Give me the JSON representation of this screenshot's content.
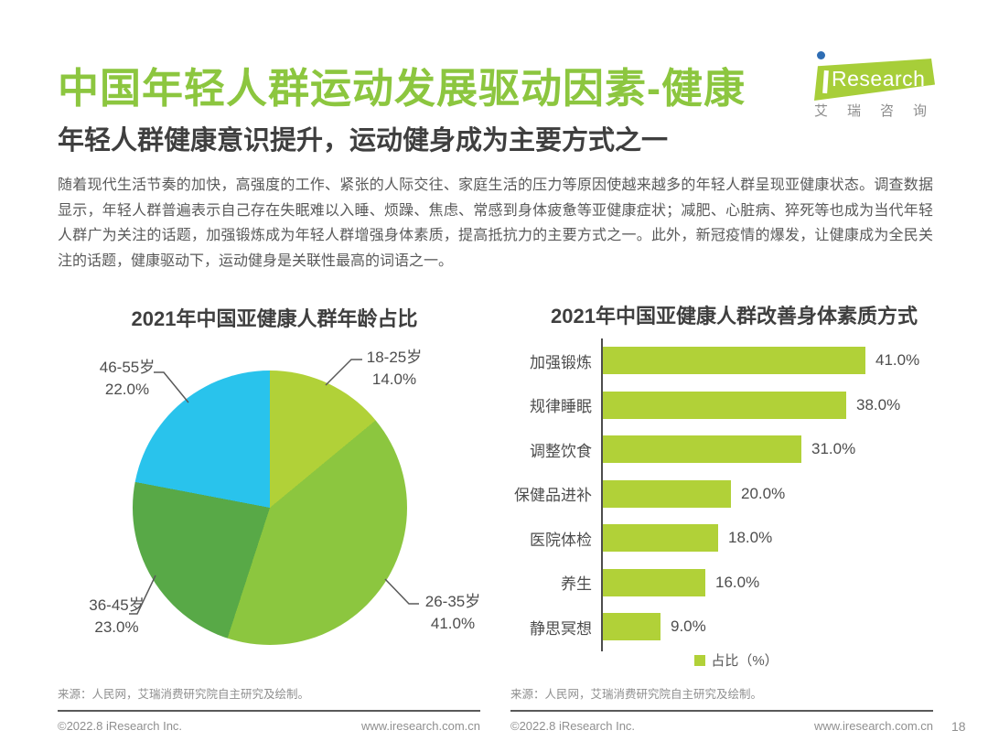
{
  "header": {
    "title": "中国年轻人群运动发展驱动因素-健康",
    "subtitle": "年轻人群健康意识提升，运动健身成为主要方式之一"
  },
  "logo": {
    "brand_en": "Research",
    "brand_cn": "艾瑞咨询",
    "flag_color": "#A7CE39",
    "dot_color": "#2E6DB4"
  },
  "intro": {
    "text": "随着现代生活节奏的加快，高强度的工作、紧张的人际交往、家庭生活的压力等原因使越来越多的年轻人群呈现亚健康状态。调查数据显示，年轻人群普遍表示自己存在失眠难以入睡、烦躁、焦虑、常感到身体疲惫等亚健康症状；减肥、心脏病、猝死等也成为当代年轻人群广为关注的话题，加强锻炼成为年轻人群增强身体素质，提高抵抗力的主要方式之一。此外，新冠疫情的爆发，让健康成为全民关注的话题，健康驱动下，运动健身是关联性最高的词语之一。"
  },
  "chart_data": [
    {
      "type": "pie",
      "title": "2021年中国亚健康人群年龄占比",
      "labels": [
        "18-25岁",
        "26-35岁",
        "36-45岁",
        "46-55岁"
      ],
      "values": [
        14.0,
        41.0,
        23.0,
        22.0
      ],
      "value_labels": [
        "14.0%",
        "41.0%",
        "23.0%",
        "22.0%"
      ],
      "colors": [
        "#B1D138",
        "#8CC63F",
        "#58A947",
        "#29C3EC"
      ],
      "start_angle_deg": 0,
      "direction": "clockwise",
      "legend_position": "outside-callouts"
    },
    {
      "type": "bar",
      "orientation": "horizontal",
      "title": "2021年中国亚健康人群改善身体素质方式",
      "categories": [
        "加强锻炼",
        "规律睡眠",
        "调整饮食",
        "保健品进补",
        "医院体检",
        "养生",
        "静思冥想"
      ],
      "values": [
        41.0,
        38.0,
        31.0,
        20.0,
        18.0,
        16.0,
        9.0
      ],
      "value_labels": [
        "41.0%",
        "38.0%",
        "31.0%",
        "20.0%",
        "18.0%",
        "16.0%",
        "9.0%"
      ],
      "bar_color": "#B1D138",
      "legend": "占比（%）",
      "legend_position": "bottom",
      "xlim": [
        0,
        45
      ],
      "grid": false
    }
  ],
  "footer": {
    "source": "来源：人民网，艾瑞消费研究院自主研究及绘制。",
    "copyright": "©2022.8 iResearch Inc.",
    "website": "www.iresearch.com.cn",
    "page_number": "18"
  },
  "colors": {
    "brand_green": "#8CC63F",
    "accent_light_green": "#B1D138",
    "accent_dark_green": "#58A947",
    "accent_cyan": "#29C3EC",
    "heading_dark": "#3f3f3f",
    "body_gray": "#595959",
    "footer_gray": "#8f8f8f"
  }
}
